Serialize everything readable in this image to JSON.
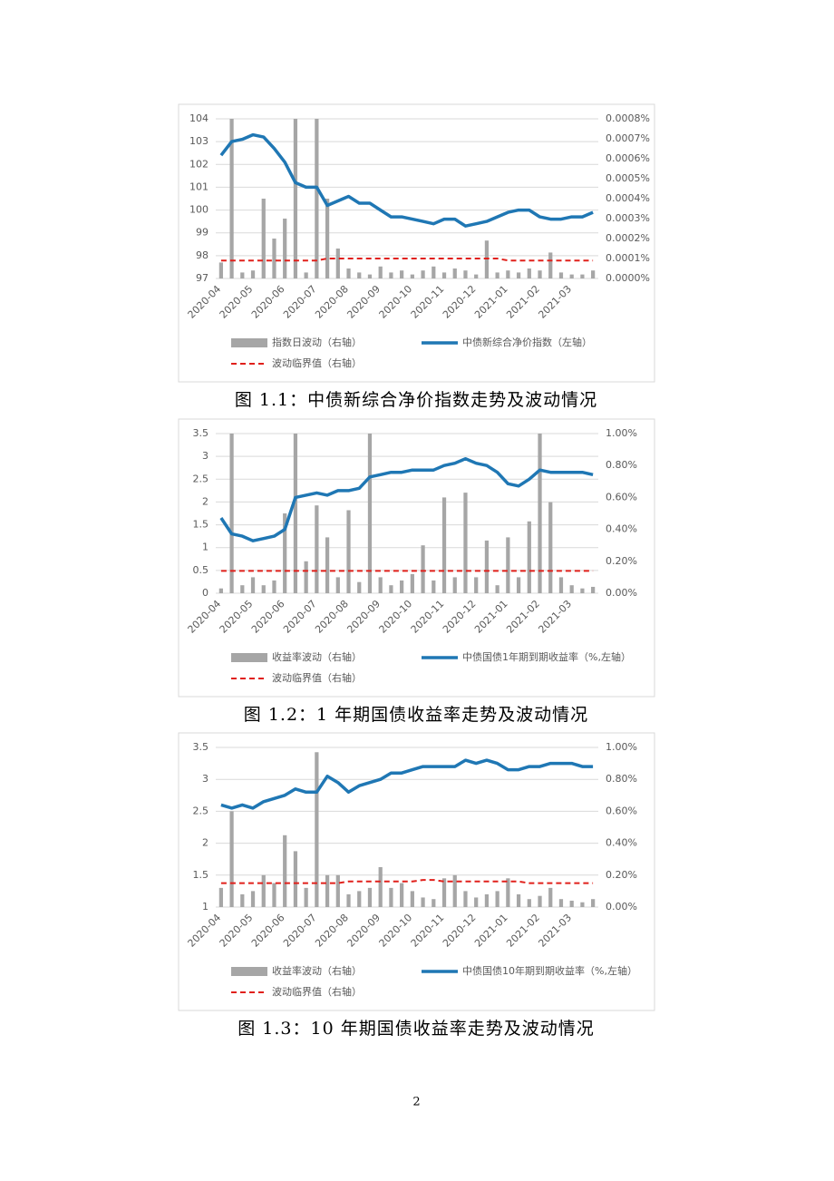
{
  "chart_data": [
    {
      "type": "combo",
      "caption": "图 1.1：中债新综合净价指数走势及波动情况",
      "categories": [
        "2020-04",
        null,
        null,
        "2020-05",
        null,
        null,
        "2020-06",
        null,
        null,
        "2020-07",
        null,
        null,
        "2020-08",
        null,
        null,
        "2020-09",
        null,
        null,
        "2020-10",
        null,
        null,
        "2020-11",
        null,
        null,
        "2020-12",
        null,
        null,
        "2021-01",
        null,
        null,
        "2021-02",
        null,
        null,
        "2021-03",
        null,
        null
      ],
      "ylim": [
        97,
        104
      ],
      "yticks": [
        97,
        98,
        99,
        100,
        101,
        102,
        103,
        104
      ],
      "y2lim": [
        0,
        0.0008
      ],
      "y2ticks": [
        {
          "value": 0,
          "label": "0.0000%"
        },
        {
          "value": 0.0001,
          "label": "0.0001%"
        },
        {
          "value": 0.0002,
          "label": "0.0002%"
        },
        {
          "value": 0.0003,
          "label": "0.0003%"
        },
        {
          "value": 0.0004,
          "label": "0.0004%"
        },
        {
          "value": 0.0005,
          "label": "0.0005%"
        },
        {
          "value": 0.0006,
          "label": "0.0006%"
        },
        {
          "value": 0.0007,
          "label": "0.0007%"
        },
        {
          "value": 0.0008,
          "label": "0.0008%"
        }
      ],
      "grid": true,
      "series": [
        {
          "name": "指数日波动（右轴）",
          "kind": "bar",
          "axis": "y2",
          "color": "#a6a6a6",
          "values": [
            8e-05,
            0.0008,
            3e-05,
            4e-05,
            0.0004,
            0.0002,
            0.0003,
            0.0008,
            3e-05,
            0.0008,
            0.0004,
            0.00015,
            5e-05,
            3e-05,
            2e-05,
            6e-05,
            3e-05,
            4e-05,
            2e-05,
            4e-05,
            6e-05,
            3e-05,
            5e-05,
            4e-05,
            2e-05,
            0.00019,
            3e-05,
            4e-05,
            3e-05,
            5e-05,
            4e-05,
            0.00013,
            3e-05,
            2e-05,
            2e-05,
            4e-05
          ]
        },
        {
          "name": "中债新综合净价指数（左轴）",
          "kind": "line",
          "color": "#1f77b4",
          "values": [
            102.4,
            103.0,
            103.1,
            103.3,
            103.2,
            102.7,
            102.1,
            101.2,
            101.0,
            101.0,
            100.2,
            100.4,
            100.6,
            100.3,
            100.3,
            100.0,
            99.7,
            99.7,
            99.6,
            99.5,
            99.4,
            99.6,
            99.6,
            99.3,
            99.4,
            99.5,
            99.7,
            99.9,
            100.0,
            100.0,
            99.7,
            99.6,
            99.6,
            99.7,
            99.7,
            99.9
          ]
        },
        {
          "name": "波动临界值（右轴）",
          "kind": "line",
          "dashed": true,
          "axis": "y2",
          "color": "#e0201b",
          "values": [
            9e-05,
            9e-05,
            9e-05,
            9e-05,
            9e-05,
            9e-05,
            9e-05,
            9e-05,
            9e-05,
            9e-05,
            0.0001,
            0.0001,
            0.0001,
            0.0001,
            0.0001,
            0.0001,
            0.0001,
            0.0001,
            0.0001,
            0.0001,
            0.0001,
            0.0001,
            0.0001,
            0.0001,
            0.0001,
            0.0001,
            0.0001,
            9e-05,
            9e-05,
            9e-05,
            9e-05,
            9e-05,
            9e-05,
            9e-05,
            9e-05,
            9e-05
          ]
        }
      ]
    },
    {
      "type": "combo",
      "caption": "图 1.2：1 年期国债收益率走势及波动情况",
      "categories": [
        "2020-04",
        null,
        null,
        "2020-05",
        null,
        null,
        "2020-06",
        null,
        null,
        "2020-07",
        null,
        null,
        "2020-08",
        null,
        null,
        "2020-09",
        null,
        null,
        "2020-10",
        null,
        null,
        "2020-11",
        null,
        null,
        "2020-12",
        null,
        null,
        "2021-01",
        null,
        null,
        "2021-02",
        null,
        null,
        "2021-03",
        null,
        null
      ],
      "ylim": [
        0,
        3.5
      ],
      "yticks": [
        0,
        0.5,
        1,
        1.5,
        2,
        2.5,
        3,
        3.5
      ],
      "y2lim": [
        0,
        1
      ],
      "y2ticks": [
        {
          "value": 0,
          "label": "0.00%"
        },
        {
          "value": 0.2,
          "label": "0.20%"
        },
        {
          "value": 0.4,
          "label": "0.40%"
        },
        {
          "value": 0.6,
          "label": "0.60%"
        },
        {
          "value": 0.8,
          "label": "0.80%"
        },
        {
          "value": 1,
          "label": "1.00%"
        }
      ],
      "grid": true,
      "series": [
        {
          "name": "收益率波动（右轴）",
          "kind": "bar",
          "axis": "y2",
          "color": "#a6a6a6",
          "values": [
            0.03,
            1.0,
            0.05,
            0.1,
            0.05,
            0.08,
            0.5,
            1.0,
            0.2,
            0.55,
            0.35,
            0.1,
            0.52,
            0.07,
            1.0,
            0.1,
            0.05,
            0.08,
            0.12,
            0.3,
            0.08,
            0.6,
            0.1,
            0.63,
            0.1,
            0.33,
            0.05,
            0.35,
            0.1,
            0.45,
            1.0,
            0.57,
            0.1,
            0.05,
            0.03,
            0.04
          ]
        },
        {
          "name": "中债国债1年期到期收益率（%,左轴）",
          "kind": "line",
          "color": "#1f77b4",
          "values": [
            1.65,
            1.3,
            1.25,
            1.15,
            1.2,
            1.25,
            1.4,
            2.1,
            2.15,
            2.2,
            2.15,
            2.25,
            2.25,
            2.3,
            2.55,
            2.6,
            2.65,
            2.65,
            2.7,
            2.7,
            2.7,
            2.8,
            2.85,
            2.95,
            2.85,
            2.8,
            2.65,
            2.4,
            2.35,
            2.5,
            2.7,
            2.65,
            2.65,
            2.65,
            2.65,
            2.6
          ]
        },
        {
          "name": "波动临界值（右轴）",
          "kind": "line",
          "dashed": true,
          "axis": "y2",
          "color": "#e0201b",
          "values": [
            0.14,
            0.14,
            0.14,
            0.14,
            0.14,
            0.14,
            0.14,
            0.14,
            0.14,
            0.14,
            0.14,
            0.14,
            0.14,
            0.14,
            0.14,
            0.14,
            0.14,
            0.14,
            0.14,
            0.14,
            0.14,
            0.14,
            0.14,
            0.14,
            0.14,
            0.14,
            0.14,
            0.14,
            0.14,
            0.14,
            0.14,
            0.14,
            0.14,
            0.14,
            0.14,
            0.14
          ]
        }
      ]
    },
    {
      "type": "combo",
      "caption": "图 1.3：10 年期国债收益率走势及波动情况",
      "categories": [
        "2020-04",
        null,
        null,
        "2020-05",
        null,
        null,
        "2020-06",
        null,
        null,
        "2020-07",
        null,
        null,
        "2020-08",
        null,
        null,
        "2020-09",
        null,
        null,
        "2020-10",
        null,
        null,
        "2020-11",
        null,
        null,
        "2020-12",
        null,
        null,
        "2021-01",
        null,
        null,
        "2021-02",
        null,
        null,
        "2021-03",
        null,
        null
      ],
      "ylim": [
        1,
        3.5
      ],
      "yticks": [
        1,
        1.5,
        2,
        2.5,
        3,
        3.5
      ],
      "y2lim": [
        0,
        1
      ],
      "y2ticks": [
        {
          "value": 0,
          "label": "0.00%"
        },
        {
          "value": 0.2,
          "label": "0.20%"
        },
        {
          "value": 0.4,
          "label": "0.40%"
        },
        {
          "value": 0.6,
          "label": "0.60%"
        },
        {
          "value": 0.8,
          "label": "0.80%"
        },
        {
          "value": 1,
          "label": "1.00%"
        }
      ],
      "grid": true,
      "series": [
        {
          "name": "收益率波动（右轴）",
          "kind": "bar",
          "axis": "y2",
          "color": "#a6a6a6",
          "values": [
            0.12,
            0.6,
            0.08,
            0.1,
            0.2,
            0.15,
            0.45,
            0.35,
            0.12,
            0.97,
            0.2,
            0.2,
            0.08,
            0.1,
            0.12,
            0.25,
            0.12,
            0.15,
            0.1,
            0.06,
            0.05,
            0.18,
            0.2,
            0.1,
            0.06,
            0.08,
            0.1,
            0.18,
            0.08,
            0.05,
            0.07,
            0.12,
            0.05,
            0.04,
            0.03,
            0.05
          ]
        },
        {
          "name": "中债国债10年期到期收益率（%,左轴）",
          "kind": "line",
          "color": "#1f77b4",
          "values": [
            2.6,
            2.55,
            2.6,
            2.55,
            2.65,
            2.7,
            2.75,
            2.85,
            2.8,
            2.8,
            3.05,
            2.95,
            2.8,
            2.9,
            2.95,
            3.0,
            3.1,
            3.1,
            3.15,
            3.2,
            3.2,
            3.2,
            3.2,
            3.3,
            3.25,
            3.3,
            3.25,
            3.15,
            3.15,
            3.2,
            3.2,
            3.25,
            3.25,
            3.25,
            3.2,
            3.2
          ]
        },
        {
          "name": "波动临界值（右轴）",
          "kind": "line",
          "dashed": true,
          "axis": "y2",
          "color": "#e0201b",
          "values": [
            0.15,
            0.15,
            0.15,
            0.15,
            0.15,
            0.15,
            0.15,
            0.15,
            0.15,
            0.15,
            0.15,
            0.15,
            0.16,
            0.16,
            0.16,
            0.16,
            0.16,
            0.16,
            0.16,
            0.17,
            0.17,
            0.16,
            0.16,
            0.16,
            0.16,
            0.16,
            0.16,
            0.16,
            0.16,
            0.15,
            0.15,
            0.15,
            0.15,
            0.15,
            0.15,
            0.15
          ]
        }
      ]
    }
  ],
  "page_number": "2"
}
